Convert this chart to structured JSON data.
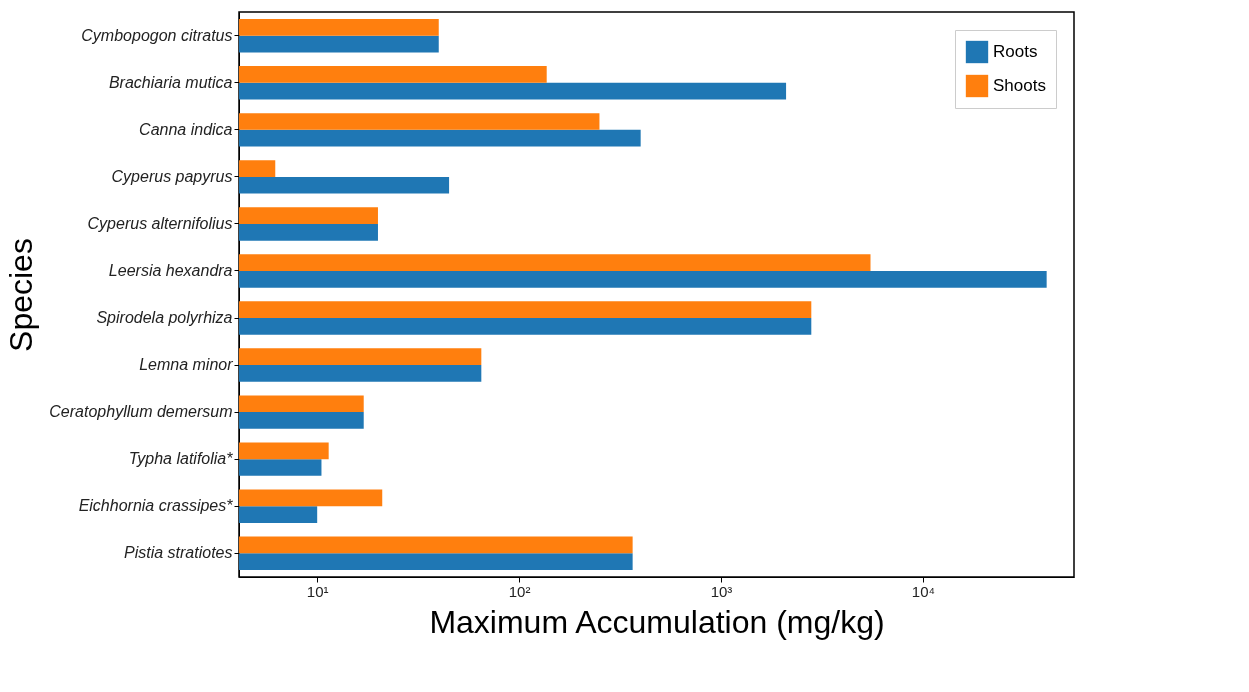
{
  "chart_data": {
    "type": "bar",
    "orientation": "horizontal",
    "xlabel": "Maximum Accumulation (mg/kg)",
    "ylabel": "Species",
    "log": "x",
    "grid": false,
    "legend": "top right",
    "categories": [
      "Cymbopogon citratus",
      "Brachiaria mutica",
      "Canna indica",
      "Cyperus papyrus",
      "Cyperus alternifolius",
      "Leersia hexandra",
      "Spirodela polyrhiza",
      "Lemna minor",
      "Ceratophyllum demersum",
      "Typha latifolia*",
      "Eichhornia crassipes*",
      "Pistia stratiotes"
    ],
    "xlim": [
      4.1,
      56000
    ],
    "xticks": [
      {
        "value": 10,
        "label": "10¹"
      },
      {
        "value": 100,
        "label": "10²"
      },
      {
        "value": 1000,
        "label": "10³"
      },
      {
        "value": 10000,
        "label": "10⁴"
      }
    ],
    "series": [
      {
        "name": "Roots",
        "color": "#1f77b4",
        "values": [
          40,
          2100,
          400,
          45,
          20,
          41000,
          2800,
          65,
          17,
          10.5,
          10,
          365
        ]
      },
      {
        "name": "Shoots",
        "color": "#ff7f0e",
        "values": [
          40,
          137,
          250,
          6.2,
          20,
          5500,
          2800,
          65,
          17,
          11.4,
          21,
          365
        ]
      }
    ]
  }
}
